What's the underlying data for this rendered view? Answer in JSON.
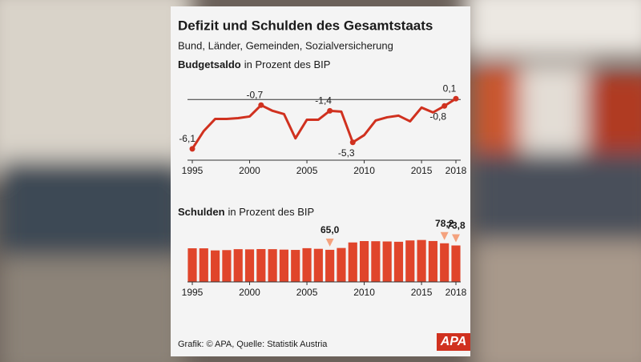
{
  "header": {
    "title": "Defizit und Schulden des Gesamtstaats",
    "subtitle": "Bund, Länder, Gemeinden, Sozialversicherung"
  },
  "chart_data": [
    {
      "type": "line",
      "title_bold": "Budgetsaldo",
      "title_rest": "in Prozent des BIP",
      "color": "#d0311f",
      "x": [
        1995,
        1996,
        1997,
        1998,
        1999,
        2000,
        2001,
        2002,
        2003,
        2004,
        2005,
        2006,
        2007,
        2008,
        2009,
        2010,
        2011,
        2012,
        2013,
        2014,
        2015,
        2016,
        2017,
        2018
      ],
      "values": [
        -6.1,
        -3.9,
        -2.4,
        -2.4,
        -2.3,
        -2.1,
        -0.7,
        -1.4,
        -1.8,
        -4.8,
        -2.5,
        -2.5,
        -1.4,
        -1.5,
        -5.3,
        -4.4,
        -2.6,
        -2.2,
        -2.0,
        -2.7,
        -1.0,
        -1.6,
        -0.8,
        0.1
      ],
      "value_labels": [
        "-6,1",
        null,
        null,
        null,
        null,
        null,
        "-0,7",
        null,
        null,
        null,
        null,
        null,
        "-1,4",
        null,
        "-5,3",
        null,
        null,
        null,
        null,
        null,
        null,
        null,
        "-0,8",
        "0,1"
      ],
      "xlim": [
        1995,
        2018
      ],
      "xticks": [
        1995,
        2000,
        2005,
        2010,
        2015,
        2018
      ],
      "ylim": [
        -7.5,
        2
      ]
    },
    {
      "type": "bar",
      "title_bold": "Schulden",
      "title_rest": "in Prozent des BIP",
      "color": "#e0452b",
      "marker_color": "#f4a27e",
      "x": [
        1995,
        1996,
        1997,
        1998,
        1999,
        2000,
        2001,
        2002,
        2003,
        2004,
        2005,
        2006,
        2007,
        2008,
        2009,
        2010,
        2011,
        2012,
        2013,
        2014,
        2015,
        2016,
        2017,
        2018
      ],
      "values": [
        68.1,
        68.0,
        63.8,
        64.4,
        66.3,
        65.9,
        66.5,
        66.3,
        65.4,
        64.8,
        68.3,
        67.0,
        65.0,
        68.7,
        79.9,
        82.7,
        82.4,
        81.9,
        81.3,
        84.0,
        84.9,
        82.8,
        78.2,
        73.8
      ],
      "value_labels": [
        null,
        null,
        null,
        null,
        null,
        null,
        null,
        null,
        null,
        null,
        null,
        null,
        "65,0",
        null,
        null,
        null,
        null,
        null,
        null,
        null,
        null,
        null,
        "78,2",
        "73,8"
      ],
      "xlim": [
        1995,
        2018
      ],
      "xticks": [
        1995,
        2000,
        2005,
        2010,
        2015,
        2018
      ],
      "ylim": [
        0,
        120
      ]
    }
  ],
  "footer": {
    "source": "Grafik: © APA, Quelle: Statistik Austria",
    "logo": "APA"
  }
}
